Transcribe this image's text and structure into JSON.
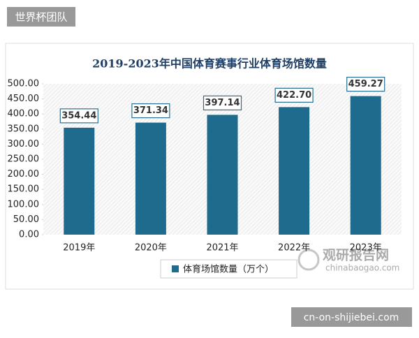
{
  "header": {
    "badge": "世界杯团队"
  },
  "chart_data": {
    "type": "bar",
    "title": "2019-2023年中国体育赛事行业体育场馆数量",
    "categories": [
      "2019年",
      "2020年",
      "2021年",
      "2022年",
      "2023年"
    ],
    "series": [
      {
        "name": "体育场馆数量（万个）",
        "color": "#1f6b8e",
        "values": [
          354.44,
          371.34,
          397.14,
          422.7,
          459.27
        ],
        "value_labels": [
          "354.44",
          "371.34",
          "397.14",
          "422.70",
          "459.27"
        ]
      }
    ],
    "ylim": [
      0,
      500
    ],
    "yticks": [
      {
        "value": 0,
        "label": "0.00"
      },
      {
        "value": 50,
        "label": "50.00"
      },
      {
        "value": 100,
        "label": "100.00"
      },
      {
        "value": 150,
        "label": "150.00"
      },
      {
        "value": 200,
        "label": "200.00"
      },
      {
        "value": 250,
        "label": "250.00"
      },
      {
        "value": 300,
        "label": "300.00"
      },
      {
        "value": 350,
        "label": "350.00"
      },
      {
        "value": 400,
        "label": "400.00"
      },
      {
        "value": 450,
        "label": "450.00"
      },
      {
        "value": 500,
        "label": "500.00"
      }
    ],
    "legend": "bottom"
  },
  "watermark": {
    "name": "观研报告网",
    "url": "chinabaogao.com"
  },
  "footer": {
    "badge": "cn-on-shijiebei.com"
  }
}
